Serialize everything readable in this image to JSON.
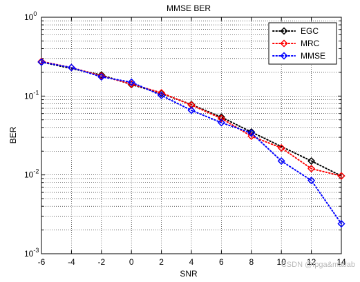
{
  "chart_data": {
    "type": "line",
    "title": "MMSE BER",
    "xlabel": "SNR",
    "ylabel": "BER",
    "xlim": [
      -6,
      14
    ],
    "ylim": [
      0.001,
      1
    ],
    "yscale": "log",
    "grid": true,
    "legend_position": "top-right",
    "x_ticks": [
      -6,
      -4,
      -2,
      0,
      2,
      4,
      6,
      8,
      10,
      12,
      14
    ],
    "x_tick_labels": [
      "-6",
      "-4",
      "-2",
      "0",
      "2",
      "4",
      "6",
      "8",
      "10",
      "12",
      "14"
    ],
    "y_ticks": [
      {
        "value": 0.001,
        "base": "10",
        "exp": "-3"
      },
      {
        "value": 0.01,
        "base": "10",
        "exp": "-2"
      },
      {
        "value": 0.1,
        "base": "10",
        "exp": "-1"
      },
      {
        "value": 1,
        "base": "10",
        "exp": "0"
      }
    ],
    "series": [
      {
        "name": "EGC",
        "color": "#000000",
        "marker": "diamond",
        "line": "dotted",
        "x": [
          -6,
          -2,
          0,
          2,
          4,
          6,
          8,
          12,
          14
        ],
        "y": [
          0.27,
          0.185,
          0.14,
          0.108,
          0.078,
          0.054,
          0.035,
          0.015,
          0.0097
        ]
      },
      {
        "name": "MRC",
        "color": "#ff0000",
        "marker": "diamond",
        "line": "dotted",
        "x": [
          -6,
          -4,
          -2,
          0,
          2,
          4,
          6,
          8,
          10,
          12,
          14
        ],
        "y": [
          0.275,
          0.23,
          0.18,
          0.142,
          0.11,
          0.077,
          0.052,
          0.031,
          0.022,
          0.012,
          0.0097
        ]
      },
      {
        "name": "MMSE",
        "color": "#0000ff",
        "marker": "diamond",
        "line": "dotted",
        "x": [
          -6,
          -4,
          -2,
          0,
          2,
          4,
          6,
          8,
          10,
          12,
          14
        ],
        "y": [
          0.27,
          0.23,
          0.175,
          0.15,
          0.102,
          0.066,
          0.046,
          0.034,
          0.015,
          0.0085,
          0.0024
        ]
      }
    ]
  },
  "watermark": "CSDN @fpga&matlab"
}
